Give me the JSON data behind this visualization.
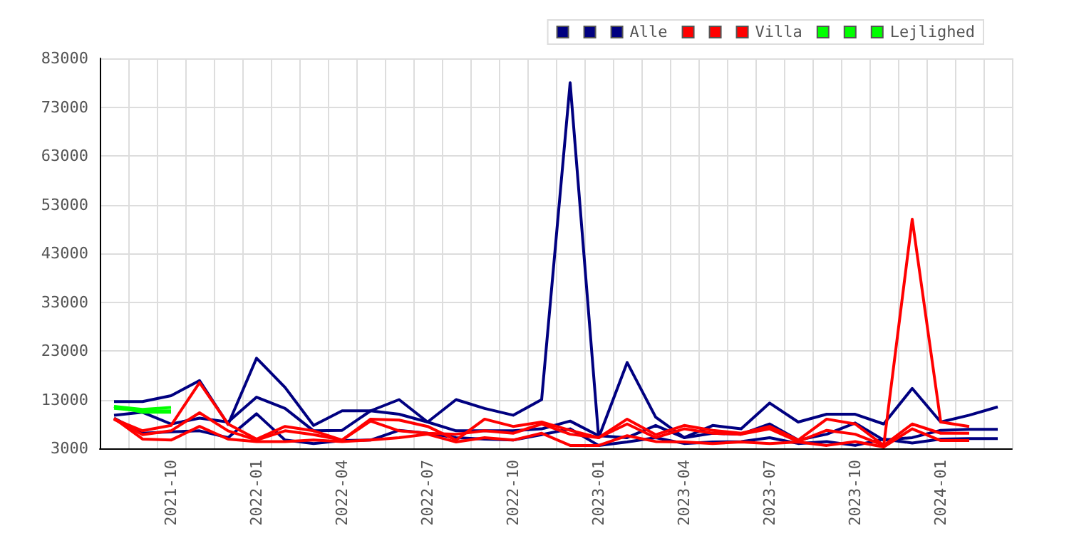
{
  "chart_data": {
    "type": "line",
    "categories": [
      null,
      null,
      "2021-10",
      null,
      null,
      "2022-01",
      null,
      null,
      "2022-04",
      null,
      null,
      "2022-07",
      null,
      null,
      "2022-10",
      null,
      null,
      "2023-01",
      null,
      null,
      "2023-04",
      null,
      null,
      "2023-07",
      null,
      null,
      "2023-10",
      null,
      null,
      "2024-01",
      null,
      null
    ],
    "series": [
      {
        "color": "#000080",
        "values": [
          12600,
          12600,
          13800,
          16900,
          7900,
          21500,
          15500,
          7700,
          10700,
          10700,
          13000,
          8400,
          13000,
          11200,
          9800,
          13000,
          78000,
          5200,
          20600,
          9400,
          5200,
          7700,
          7000,
          12300,
          8400,
          10000,
          10000,
          8000,
          15300,
          8400,
          9800,
          11500
        ]
      },
      {
        "color": "#000080",
        "values": [
          9800,
          10400,
          8000,
          9200,
          8400,
          13500,
          11200,
          6600,
          6700,
          10700,
          10000,
          8400,
          6600,
          6600,
          6600,
          7000,
          8600,
          5600,
          5200,
          7700,
          5200,
          6100,
          5900,
          8000,
          4700,
          5900,
          8200,
          4700,
          5200,
          6700,
          6900,
          6900
        ]
      },
      {
        "name": "Alle",
        "color": "#000080",
        "values": [
          9200,
          6100,
          6400,
          6600,
          5200,
          10100,
          4700,
          4000,
          4600,
          4700,
          6700,
          6100,
          5200,
          4900,
          4700,
          5800,
          7000,
          3600,
          4300,
          5200,
          4000,
          4300,
          4400,
          5200,
          4000,
          4400,
          3600,
          4900,
          4100,
          4900,
          5000,
          5000
        ]
      },
      {
        "color": "#ff0000",
        "values": [
          9000,
          6600,
          7700,
          16500,
          8000,
          4900,
          7500,
          6600,
          4700,
          9000,
          8800,
          7500,
          4700,
          9000,
          7500,
          8400,
          6700,
          5200,
          9000,
          5800,
          7700,
          6700,
          6100,
          7500,
          4700,
          9000,
          8000,
          3600,
          50000,
          8400,
          7500,
          null
        ]
      },
      {
        "color": "#ff0000",
        "values": [
          9000,
          5800,
          6600,
          10300,
          6600,
          4700,
          6600,
          5800,
          4700,
          8600,
          6600,
          6100,
          5900,
          6600,
          6100,
          8000,
          5900,
          5200,
          8000,
          5200,
          7000,
          6100,
          5900,
          7000,
          4400,
          6700,
          5900,
          3600,
          8000,
          6100,
          6100,
          null
        ]
      },
      {
        "name": "Villa",
        "color": "#ff0000",
        "values": [
          9200,
          4900,
          4700,
          7500,
          4900,
          4400,
          4400,
          4700,
          4400,
          4700,
          5200,
          5900,
          4300,
          5200,
          4700,
          6100,
          3600,
          3600,
          5600,
          4400,
          4300,
          4000,
          4300,
          4000,
          4300,
          3600,
          4400,
          3300,
          7000,
          4600,
          4600,
          null
        ]
      },
      {
        "color": "#00ff00",
        "values": [
          11600,
          11000,
          11400,
          null,
          null,
          null,
          null,
          null,
          null,
          null,
          null,
          null,
          null,
          null,
          null,
          null,
          null,
          null,
          null,
          null,
          null,
          null,
          null,
          null,
          null,
          null,
          null,
          null,
          null,
          null,
          null,
          null
        ]
      },
      {
        "color": "#00ff00",
        "values": [
          11200,
          10700,
          10700,
          null,
          null,
          null,
          null,
          null,
          null,
          null,
          null,
          null,
          null,
          null,
          null,
          null,
          null,
          null,
          null,
          null,
          null,
          null,
          null,
          null,
          null,
          null,
          null,
          null,
          null,
          null,
          null,
          null
        ]
      },
      {
        "name": "Lejlighed",
        "color": "#00ff00",
        "values": [
          11600,
          10400,
          10400,
          null,
          null,
          null,
          null,
          null,
          null,
          null,
          null,
          null,
          null,
          null,
          null,
          null,
          null,
          null,
          null,
          null,
          null,
          null,
          null,
          null,
          null,
          null,
          null,
          null,
          null,
          null,
          null,
          null
        ]
      }
    ],
    "ylim": [
      3000,
      83000
    ],
    "yticks": [
      3000,
      13000,
      23000,
      33000,
      43000,
      53000,
      63000,
      73000,
      83000
    ],
    "grid": true,
    "legend": "top right",
    "marker": "none",
    "line_style": "solid"
  }
}
